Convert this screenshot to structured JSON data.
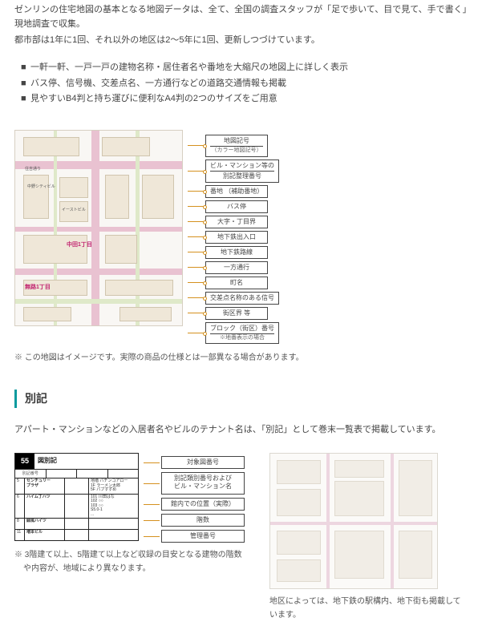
{
  "intro": {
    "line1": "ゼンリンの住宅地図の基本となる地図データは、全て、全国の調査スタッフが「足で歩いて、目で見て、手で書く」現地調査で収集。",
    "line2": "都市部は1年に1回、それ以外の地区は2〜5年に1回、更新しつづけています。"
  },
  "features": [
    "一軒一軒、一戸一戸の建物名称・居住者名や番地を大縮尺の地図上に詳しく表示",
    "バス停、信号機、交差点名、一方通行などの道路交通情報も掲載",
    "見やすいB4判と持ち運びに便利なA4判の2つのサイズをご用意"
  ],
  "map": {
    "labels": {
      "street": "住吉通り",
      "bldg1": "中野シティビル",
      "bldg2": "イーストビル",
      "chome_a": "中田1丁目",
      "chome_b": "無路1丁目"
    },
    "legend": [
      {
        "type": "multi",
        "lines": [
          "地図記号",
          "（カラー地図記号）"
        ],
        "class": "sub2"
      },
      {
        "type": "multi",
        "lines": [
          "ビル・マンション等の",
          "別記整理番号"
        ]
      },
      {
        "type": "single",
        "text": "番地 （補助番地）"
      },
      {
        "type": "single",
        "text": "バス停"
      },
      {
        "type": "single",
        "text": "大字・丁目界"
      },
      {
        "type": "single",
        "text": "地下鉄出入口"
      },
      {
        "type": "single",
        "text": "地下鉄路線"
      },
      {
        "type": "single",
        "text": "一方通行"
      },
      {
        "type": "single",
        "text": "町名"
      },
      {
        "type": "single",
        "text": "交差点名称のある信号"
      },
      {
        "type": "single",
        "text": "街区界 等"
      },
      {
        "type": "multi",
        "lines": [
          "ブロック（街区）番号",
          "※地番表示の場合"
        ],
        "class": "sub2"
      }
    ],
    "note": "※ この地図はイメージです。実際の商品の仕様とは一部異なる場合があります。"
  },
  "section": {
    "title": "別記",
    "desc": "アパート・マンションなどの入居者名やビルのテナント名は、「別記」として巻末一覧表で掲載しています。"
  },
  "bekki": {
    "page_num": "55",
    "page_title": "図別記",
    "sub_cols": [
      "別記番号",
      "",
      "",
      ""
    ],
    "rows": [
      {
        "a": "5",
        "name": "センチュリー\nプラザ",
        "sub": "地階 パチンコアロー\n1F ラーメン太郎\n5F パブすずめ"
      },
      {
        "a": "6",
        "name": "ハイム丁ハツ",
        "sub": "101 川田はな\n102 ○○\n103 ○○\nS5.0-1\n..."
      },
      {
        "a": "8",
        "name": "緑風ハイツ",
        "sub": ""
      },
      {
        "a": "11",
        "name": "増本ビル",
        "sub": ""
      }
    ],
    "legend": [
      "対象図番号",
      "別記類別番号および\nビル・マンション名",
      "館内での位置（実際）",
      "階数",
      "管理番号"
    ],
    "note": "※ 3階建て以上、5階建て以上など収録の目安となる建物の階数や内容が、地域により異なります。"
  },
  "right": {
    "note": "地区によっては、地下鉄の駅構内、地下街も掲載しています。"
  },
  "colors": {
    "accent": "#099a9e",
    "leader": "#d5911f",
    "road_pink": "#e9c2d1",
    "road_green": "#dfe9c9",
    "text": "#454545"
  }
}
